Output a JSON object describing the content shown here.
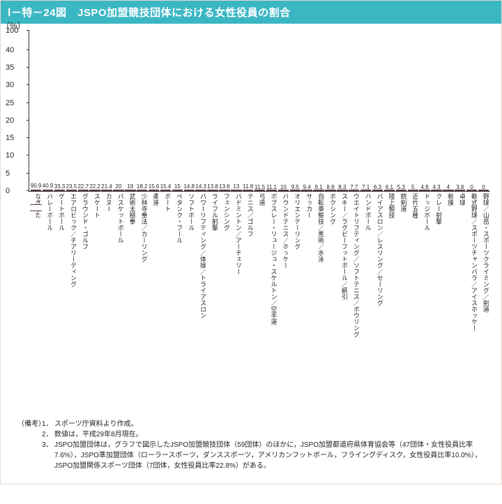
{
  "title": "Ⅰ－特－24図　JSPO加盟競技団体における女性役員の割合",
  "title_bg": "#3bb7c4",
  "title_color": "#ffffff",
  "chart": {
    "type": "bar",
    "y_unit": "（%）",
    "ylim": [
      0,
      100
    ],
    "yticks": [
      0,
      5,
      10,
      15,
      20,
      25,
      30,
      35,
      40,
      100
    ],
    "bar_color": "#f5b8c7",
    "bar_border": "#5a3a3f",
    "display_height_ratio": 0.42,
    "first_bar_display": 0.92,
    "items": [
      {
        "label": "なぎなた",
        "value": 90.9,
        "broken": true
      },
      {
        "label": "バレーボール",
        "value": 40.9
      },
      {
        "label": "ゲートボール",
        "value": 33.3
      },
      {
        "label": "エアロビック／チアリーディング",
        "value": 23.5
      },
      {
        "label": "グラウンド・ゴルフ",
        "value": 22.7
      },
      {
        "label": "スケート",
        "value": 22.2
      },
      {
        "label": "カヌー",
        "value": 21.4
      },
      {
        "label": "バスケットボール",
        "value": 20.0
      },
      {
        "label": "武術太極拳",
        "value": 19.0
      },
      {
        "label": "少林寺拳法／カーリング",
        "value": 18.2
      },
      {
        "label": "柔道",
        "value": 15.6
      },
      {
        "label": "ボート",
        "value": 15.4
      },
      {
        "label": "ペタンク・ブール",
        "value": 15.0
      },
      {
        "label": "ソフトボール",
        "value": 14.8
      },
      {
        "label": "パワーリフティング／体操／トライアスロン",
        "value": 14.3
      },
      {
        "label": "ライフル射撃",
        "value": 13.8
      },
      {
        "label": "フェンシング",
        "value": 13.6
      },
      {
        "label": "バドミントン／アーチェリー",
        "value": 13.0
      },
      {
        "label": "テニス／ゴルフ",
        "value": 11.8
      },
      {
        "label": "弓道",
        "value": 11.5
      },
      {
        "label": "ボブスレー・リュージュ・スケルトン／空手道",
        "value": 11.1
      },
      {
        "label": "バウンドテニス／ホッケー",
        "value": 10.0
      },
      {
        "label": "オリエンテーリング",
        "value": 9.5
      },
      {
        "label": "サッカー",
        "value": 9.4
      },
      {
        "label": "自転車競技／馬術／水泳",
        "value": 9.1
      },
      {
        "label": "ボクシング",
        "value": 8.8
      },
      {
        "label": "スキー／ラグビーフットボール／綱引",
        "value": 8.3
      },
      {
        "label": "ウエイトリフティング／ソフトテニス／ボウリング",
        "value": 7.7
      },
      {
        "label": "ハンドボール",
        "value": 7.1
      },
      {
        "label": "バイアスロン／レスリング／セーリング",
        "value": 6.3
      },
      {
        "label": "陸上競技",
        "value": 6.1
      },
      {
        "label": "銃剣道",
        "value": 5.3
      },
      {
        "label": "近代五種",
        "value": 5.0
      },
      {
        "label": "ドッジボール",
        "value": 4.8
      },
      {
        "label": "クレー射撃",
        "value": 4.3
      },
      {
        "label": "相撲",
        "value": 4.0
      },
      {
        "label": "卓球",
        "value": 3.8
      },
      {
        "label": "軟式野球／スポーツチャンバラ／アイスホッケー",
        "value": 0
      },
      {
        "label": "野球／山岳・スポーツクライミング／剣道",
        "value": 0
      }
    ]
  },
  "notes": {
    "heading": "（備考）",
    "items": [
      "スポーツ庁資料より作成。",
      "数値は，平成29年8月現在。",
      "JSPO加盟団体は，グラフで図示したJSPO加盟競技団体（59団体）のほかに，JSPO加盟都道府県体育協会等（47団体・女性役員比率7.6%），JSPO準加盟団体（ローラースポーツ，ダンススポーツ，アメリカンフットボール，フライングディスク，女性役員比率10.0%），JSPO加盟関係スポーツ団体（7団体，女性役員比率22.8%）がある。"
    ]
  }
}
